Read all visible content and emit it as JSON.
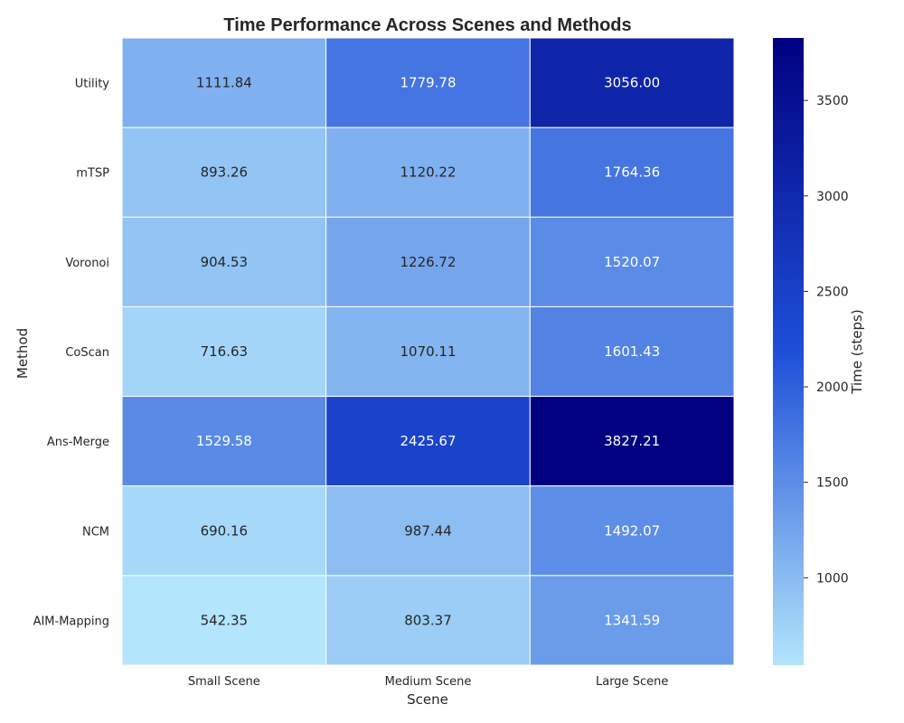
{
  "chart_data": {
    "type": "heatmap",
    "title": "Time Performance Across Scenes and Methods",
    "xlabel": "Scene",
    "ylabel": "Method",
    "x_categories": [
      "Small Scene",
      "Medium Scene",
      "Large Scene"
    ],
    "y_categories": [
      "Utility",
      "mTSP",
      "Voronoi",
      "CoScan",
      "Ans-Merge",
      "NCM",
      "AIM-Mapping"
    ],
    "values": [
      [
        1111.84,
        1779.78,
        3056.0
      ],
      [
        893.26,
        1120.22,
        1764.36
      ],
      [
        904.53,
        1226.72,
        1520.07
      ],
      [
        716.63,
        1070.11,
        1601.43
      ],
      [
        1529.58,
        2425.67,
        3827.21
      ],
      [
        690.16,
        987.44,
        1492.07
      ],
      [
        542.35,
        803.37,
        1341.59
      ]
    ],
    "value_labels": [
      [
        "1111.84",
        "1779.78",
        "3056.00"
      ],
      [
        "893.26",
        "1120.22",
        "1764.36"
      ],
      [
        "904.53",
        "1226.72",
        "1520.07"
      ],
      [
        "716.63",
        "1070.11",
        "1601.43"
      ],
      [
        "1529.58",
        "2425.67",
        "3827.21"
      ],
      [
        "690.16",
        "987.44",
        "1492.07"
      ],
      [
        "542.35",
        "803.37",
        "1341.59"
      ]
    ],
    "colorbar": {
      "label": "Time (steps)",
      "range": [
        542.35,
        3827.21
      ],
      "ticks": [
        1000,
        1500,
        2000,
        2500,
        3000,
        3500
      ],
      "tick_labels": [
        "1000",
        "1500",
        "2000",
        "2500",
        "3000",
        "3500"
      ],
      "colors": [
        "#b3e5fc",
        "#1e4fd8",
        "#000080"
      ]
    },
    "grid": false,
    "cell_border_color": "#ffffff"
  }
}
